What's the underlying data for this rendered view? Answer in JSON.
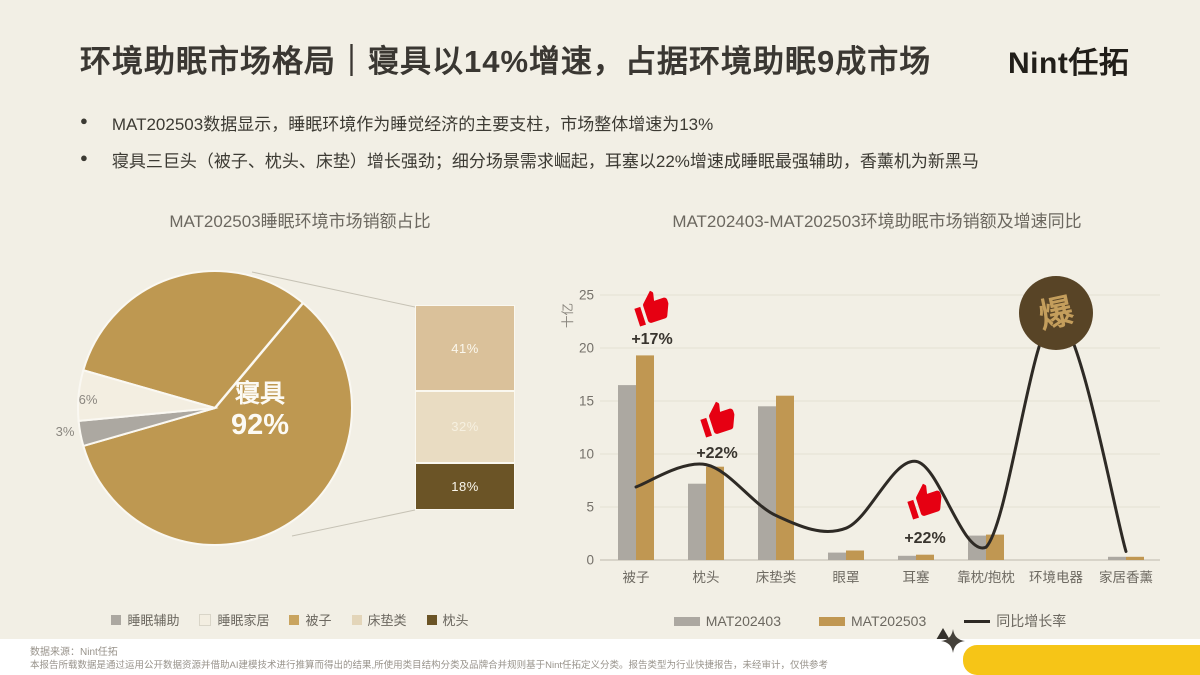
{
  "header": {
    "title": "环境助眠市场格局｜寝具以14%增速，占据环境助眠9成市场",
    "logo": "Nint任拓"
  },
  "bullets": [
    "MAT202503数据显示，睡眠环境作为睡觉经济的主要支柱，市场整体增速为13%",
    "寝具三巨头（被子、枕头、床垫）增长强劲；细分场景需求崛起，耳塞以22%增速成睡眠最强辅助，香薰机为新黑马"
  ],
  "chart_data": [
    {
      "type": "pie",
      "title": "MAT202503睡眠环境市场销额占比",
      "slices": [
        {
          "label": "寝具",
          "value": 92,
          "pct": "92%",
          "color": "#BE9851"
        },
        {
          "label": "睡眠辅助",
          "value": 3,
          "pct": "3%",
          "color": "#ACA8A1"
        },
        {
          "label": "睡眠家居",
          "value": 6,
          "pct": "6%",
          "color": "#F3EEE1"
        }
      ],
      "breakout_bar": {
        "segments": [
          {
            "label": "被子",
            "value": 41,
            "pct": "41%",
            "color": "#DAC19A"
          },
          {
            "label": "床垫类",
            "value": 32,
            "pct": "32%",
            "color": "#E9DCC2"
          },
          {
            "label": "枕头",
            "value": 18,
            "pct": "18%",
            "color": "#6B5426"
          }
        ]
      },
      "legend": [
        {
          "label": "睡眠辅助",
          "color": "#ACA8A1"
        },
        {
          "label": "睡眠家居",
          "color": "#F3EEE1"
        },
        {
          "label": "被子",
          "color": "#C9A45F"
        },
        {
          "label": "床垫类",
          "color": "#E3D5B9"
        },
        {
          "label": "枕头",
          "color": "#6B5426"
        }
      ]
    },
    {
      "type": "bar+line",
      "title": "MAT202403-MAT202503环境助眠市场销额及增速同比",
      "categories": [
        "被子",
        "枕头",
        "床垫类",
        "眼罩",
        "耳塞",
        "靠枕/抱枕",
        "环境电器",
        "家居香薰"
      ],
      "series": [
        {
          "name": "MAT202403",
          "color": "#ACA8A1",
          "values": [
            16.5,
            7.2,
            14.5,
            0.7,
            0.4,
            2.3,
            0,
            0.3
          ]
        },
        {
          "name": "MAT202503",
          "color": "#C09752",
          "values": [
            19.3,
            8.8,
            15.5,
            0.9,
            0.5,
            2.4,
            0,
            0.3
          ]
        }
      ],
      "line": {
        "name": "同比增长率",
        "color": "#2E2A25",
        "display_values": [
          6.9,
          9.0,
          4.2,
          3.0,
          9.3,
          1.2,
          23,
          0.8
        ]
      },
      "ylabel": "十亿",
      "ylim": [
        0,
        25
      ],
      "yticks": [
        0,
        5,
        10,
        15,
        20,
        25
      ],
      "annotations": [
        {
          "category_index": 0,
          "text": "+17%",
          "icon": "thumbs-up"
        },
        {
          "category_index": 1,
          "text": "+22%",
          "icon": "thumbs-up"
        },
        {
          "category_index": 4,
          "text": "+22%",
          "icon": "thumbs-up"
        },
        {
          "category_index": 6,
          "text": "爆",
          "icon": "burst-circle"
        }
      ],
      "annotation_color": "#E60012",
      "burst": {
        "fill": "#584426",
        "text_color": "#C49E5C"
      }
    }
  ],
  "footer": {
    "source": "数据来源：Nint任拓",
    "disclaimer": "本报告所载数据是通过运用公开数据资源并借助AI建模技术进行推算而得出的结果,所使用类目结构分类及品牌合并规则基于Nint任拓定义分类。报告类型为行业快捷报告，未经审计，仅供参考"
  }
}
